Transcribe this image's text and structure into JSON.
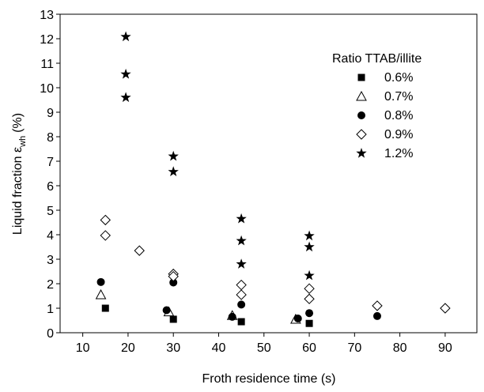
{
  "chart_data": {
    "type": "scatter",
    "x_label": "Froth residence time (s)",
    "y_label": {
      "main": "Liquid fraction ε",
      "sub": "wh",
      "unit": "(%)"
    },
    "legend_title": "Ratio TTAB/illite",
    "xlim": [
      5,
      97
    ],
    "xticks": [
      10,
      20,
      30,
      40,
      50,
      60,
      70,
      80,
      90
    ],
    "ylim": [
      0,
      13
    ],
    "yticks": [
      0,
      1,
      2,
      3,
      4,
      5,
      6,
      7,
      8,
      9,
      10,
      11,
      12,
      13
    ],
    "series": [
      {
        "name": "0.6%",
        "marker": "square",
        "color": "#000000",
        "x": [
          15,
          30,
          45,
          60
        ],
        "values": [
          1.0,
          0.55,
          0.45,
          0.38
        ]
      },
      {
        "name": "0.7%",
        "marker": "triangle-open",
        "color": "#000000",
        "x": [
          14,
          29,
          43,
          57
        ],
        "values": [
          1.55,
          0.85,
          0.7,
          0.55
        ]
      },
      {
        "name": "0.8%",
        "marker": "circle",
        "color": "#000000",
        "x": [
          14,
          28.5,
          30,
          43,
          45,
          57.5,
          60,
          75
        ],
        "values": [
          2.07,
          0.92,
          2.05,
          0.65,
          1.15,
          0.58,
          0.8,
          0.68
        ]
      },
      {
        "name": "0.9%",
        "marker": "diamond-open",
        "color": "#000000",
        "x": [
          15,
          15,
          22.5,
          30,
          30,
          45,
          45,
          60,
          60,
          75,
          90
        ],
        "values": [
          4.6,
          3.97,
          3.35,
          2.4,
          2.3,
          1.95,
          1.55,
          1.8,
          1.38,
          1.1,
          1.0
        ]
      },
      {
        "name": "1.2%",
        "marker": "star",
        "color": "#000000",
        "x": [
          19.5,
          19.5,
          19.5,
          30,
          30,
          45,
          45,
          45,
          60,
          60,
          60
        ],
        "values": [
          12.08,
          10.55,
          9.6,
          7.2,
          6.57,
          4.65,
          3.75,
          2.8,
          3.95,
          3.5,
          2.33
        ]
      }
    ]
  }
}
